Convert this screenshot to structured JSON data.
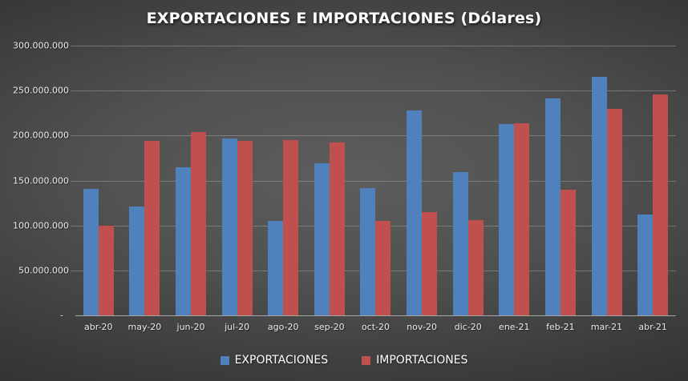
{
  "chart_data": {
    "type": "bar",
    "title": "EXPORTACIONES E IMPORTACIONES (Dólares)",
    "xlabel": "",
    "ylabel": "",
    "grid": true,
    "legend_position": "bottom",
    "background_style": "dark-radial-gradient",
    "categories": [
      "abr-20",
      "may-20",
      "jun-20",
      "jul-20",
      "ago-20",
      "sep-20",
      "oct-20",
      "nov-20",
      "dic-20",
      "ene-21",
      "feb-21",
      "mar-21",
      "abr-21"
    ],
    "series": [
      {
        "name": "EXPORTACIONES",
        "color": "#4f81bd",
        "values": [
          141000000,
          121000000,
          165000000,
          197000000,
          105000000,
          169000000,
          142000000,
          228000000,
          159000000,
          213000000,
          241000000,
          265000000,
          112000000
        ]
      },
      {
        "name": "IMPORTACIONES",
        "color": "#c0504d",
        "values": [
          100000000,
          194000000,
          204000000,
          194000000,
          195000000,
          192000000,
          105000000,
          115000000,
          106000000,
          214000000,
          140000000,
          230000000,
          246000000
        ]
      }
    ],
    "ylim": [
      0,
      300000000
    ],
    "y_ticks": [
      {
        "value": 300000000,
        "label": "300.000.000"
      },
      {
        "value": 250000000,
        "label": "250.000.000"
      },
      {
        "value": 200000000,
        "label": "200.000.000"
      },
      {
        "value": 150000000,
        "label": "150.000.000"
      },
      {
        "value": 100000000,
        "label": "100.000.000"
      },
      {
        "value": 50000000,
        "label": "50.000.000"
      },
      {
        "value": 0,
        "label": "-  "
      }
    ]
  }
}
